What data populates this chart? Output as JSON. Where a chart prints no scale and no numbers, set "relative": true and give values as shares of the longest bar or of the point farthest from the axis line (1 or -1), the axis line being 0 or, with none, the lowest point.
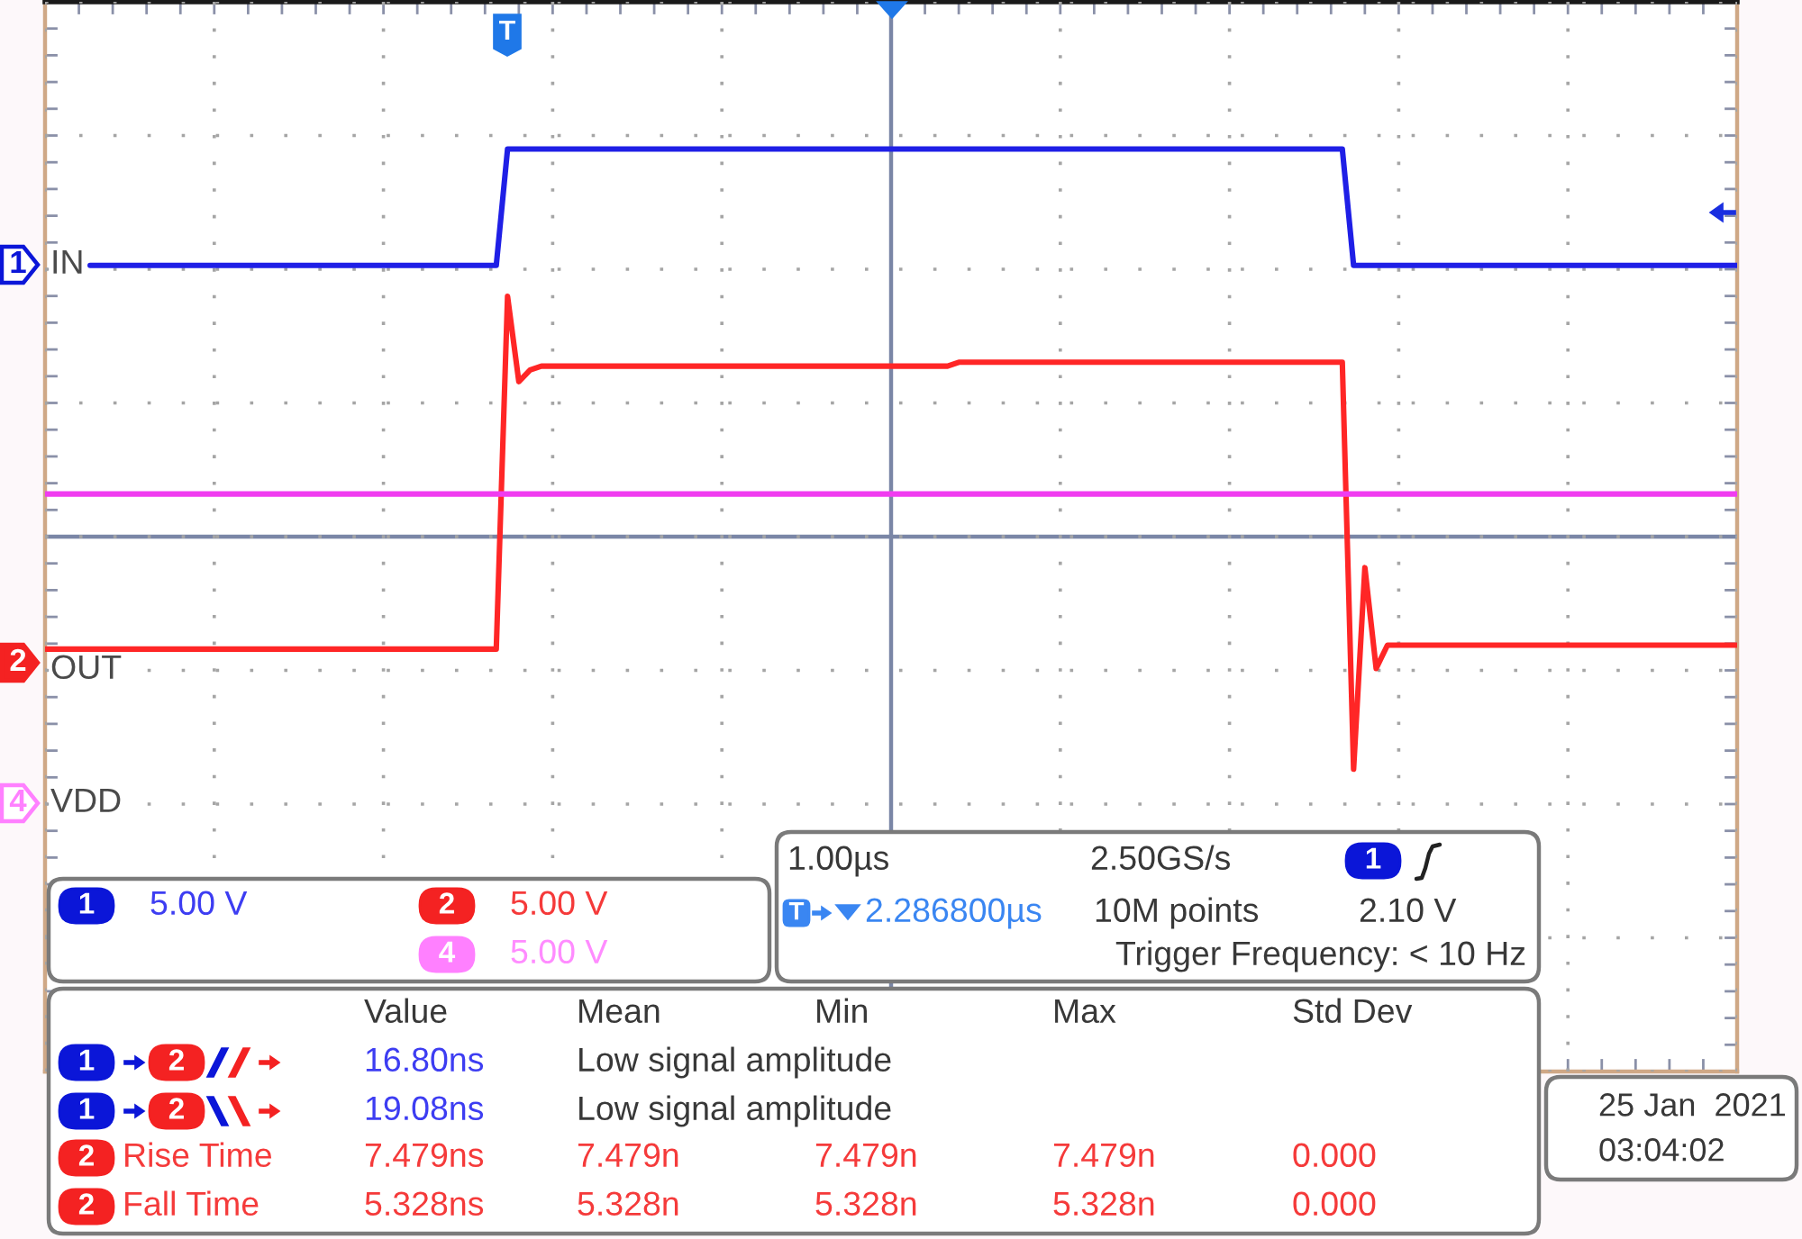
{
  "chart_data": {
    "type": "line",
    "relative": true,
    "tick_labels": false,
    "grid": true,
    "categories": [
      null,
      null,
      null,
      null,
      null,
      null,
      null,
      null,
      null,
      null,
      null,
      null,
      null,
      null,
      null,
      null,
      null,
      null,
      null,
      null,
      null,
      null,
      null,
      null,
      null,
      null,
      null,
      null,
      null,
      null,
      null,
      null,
      null,
      null,
      null,
      null,
      null,
      null,
      null,
      null,
      null,
      null,
      null,
      null,
      null,
      null,
      null,
      null,
      null,
      null,
      null,
      null,
      null,
      null,
      null,
      null,
      null,
      null,
      null,
      null,
      null,
      null,
      null,
      null,
      null,
      null,
      null,
      null,
      null,
      null,
      null,
      null,
      null,
      null,
      null,
      null,
      null,
      null,
      null,
      null,
      null,
      null,
      null,
      null,
      null,
      null,
      null,
      null,
      null,
      null,
      null,
      null,
      null,
      null,
      null,
      null,
      null,
      null,
      null,
      null,
      null,
      null,
      null,
      null,
      null,
      null,
      null,
      null,
      null,
      null,
      null,
      null,
      null,
      null,
      null,
      null,
      null,
      null,
      null,
      null,
      null,
      null,
      null,
      null,
      null,
      null,
      null,
      null,
      null,
      null,
      null,
      null,
      null,
      null,
      null,
      null,
      null,
      null,
      null,
      null,
      null,
      null,
      null,
      null,
      null,
      null,
      null,
      null,
      null,
      null,
      null
    ],
    "series": [
      {
        "name": "IN",
        "color": "#1f1fe6",
        "values": [
          null,
          null,
          null,
          null,
          0.7,
          0.7,
          0.7,
          0.7,
          0.7,
          0.7,
          0.7,
          0.7,
          0.7,
          0.7,
          0.7,
          0.7,
          0.7,
          0.7,
          0.7,
          0.7,
          0.7,
          0.7,
          0.7,
          0.7,
          0.7,
          0.7,
          0.7,
          0.7,
          0.7,
          0.7,
          0.7,
          0.7,
          0.7,
          0.7,
          0.7,
          0.7,
          0.7,
          0.7,
          0.7,
          0.7,
          0.7,
          1,
          1,
          1,
          1,
          1,
          1,
          1,
          1,
          1,
          1,
          1,
          1,
          1,
          1,
          1,
          1,
          1,
          1,
          1,
          1,
          1,
          1,
          1,
          1,
          1,
          1,
          1,
          1,
          1,
          1,
          1,
          1,
          1,
          1,
          1,
          1,
          1,
          1,
          1,
          1,
          1,
          1,
          1,
          1,
          1,
          1,
          1,
          1,
          1,
          1,
          1,
          1,
          1,
          1,
          1,
          1,
          1,
          1,
          1,
          1,
          1,
          1,
          1,
          1,
          1,
          1,
          1,
          1,
          1,
          1,
          1,
          1,
          1,
          1,
          1,
          0.7,
          0.7,
          0.7,
          0.7,
          0.7,
          0.7,
          0.7,
          0.7,
          0.7,
          0.7,
          0.7,
          0.7,
          0.7,
          0.7,
          0.7,
          0.7,
          0.7,
          0.7,
          0.7,
          0.7,
          0.7,
          0.7,
          0.7,
          0.7,
          0.7,
          0.7,
          0.7,
          0.7,
          0.7,
          0.7,
          0.7,
          0.7,
          0.7,
          0.7,
          0.7
        ]
      },
      {
        "name": "OUT",
        "color": "#ff2626",
        "values": [
          -0.29,
          -0.29,
          -0.29,
          -0.29,
          -0.29,
          -0.29,
          -0.29,
          -0.29,
          -0.29,
          -0.29,
          -0.29,
          -0.29,
          -0.29,
          -0.29,
          -0.29,
          -0.29,
          -0.29,
          -0.29,
          -0.29,
          -0.29,
          -0.29,
          -0.29,
          -0.29,
          -0.29,
          -0.29,
          -0.29,
          -0.29,
          -0.29,
          -0.29,
          -0.29,
          -0.29,
          -0.29,
          -0.29,
          -0.29,
          -0.29,
          -0.29,
          -0.29,
          -0.29,
          -0.29,
          -0.29,
          -0.29,
          0.62,
          0.4,
          0.43,
          0.44,
          0.44,
          0.44,
          0.44,
          0.44,
          0.44,
          0.44,
          0.44,
          0.44,
          0.44,
          0.44,
          0.44,
          0.44,
          0.44,
          0.44,
          0.44,
          0.44,
          0.44,
          0.44,
          0.44,
          0.44,
          0.44,
          0.44,
          0.44,
          0.44,
          0.44,
          0.44,
          0.44,
          0.44,
          0.44,
          0.44,
          0.44,
          0.44,
          0.44,
          0.44,
          0.44,
          0.44,
          0.45,
          0.45,
          0.45,
          0.45,
          0.45,
          0.45,
          0.45,
          0.45,
          0.45,
          0.45,
          0.45,
          0.45,
          0.45,
          0.45,
          0.45,
          0.45,
          0.45,
          0.45,
          0.45,
          0.45,
          0.45,
          0.45,
          0.45,
          0.45,
          0.45,
          0.45,
          0.45,
          0.45,
          0.45,
          0.45,
          0.45,
          0.45,
          0.45,
          0.45,
          0.45,
          -0.6,
          -0.08,
          -0.34,
          -0.28,
          -0.28,
          -0.28,
          -0.28,
          -0.28,
          -0.28,
          -0.28,
          -0.28,
          -0.28,
          -0.28,
          -0.28,
          -0.28,
          -0.28,
          -0.28,
          -0.28,
          -0.28,
          -0.28,
          -0.28,
          -0.28,
          -0.28,
          -0.28,
          -0.28,
          -0.28,
          -0.28,
          -0.28,
          -0.28,
          -0.28,
          -0.28,
          -0.28,
          -0.28,
          -0.28,
          -0.28
        ]
      },
      {
        "color": "#f03cf0",
        "values": [
          0.11,
          0.11,
          0.11,
          0.11,
          0.11,
          0.11,
          0.11,
          0.11,
          0.11,
          0.11,
          0.11,
          0.11,
          0.11,
          0.11,
          0.11,
          0.11,
          0.11,
          0.11,
          0.11,
          0.11,
          0.11,
          0.11,
          0.11,
          0.11,
          0.11,
          0.11,
          0.11,
          0.11,
          0.11,
          0.11,
          0.11,
          0.11,
          0.11,
          0.11,
          0.11,
          0.11,
          0.11,
          0.11,
          0.11,
          0.11,
          0.11,
          0.11,
          0.11,
          0.11,
          0.11,
          0.11,
          0.11,
          0.11,
          0.11,
          0.11,
          0.11,
          0.11,
          0.11,
          0.11,
          0.11,
          0.11,
          0.11,
          0.11,
          0.11,
          0.11,
          0.11,
          0.11,
          0.11,
          0.11,
          0.11,
          0.11,
          0.11,
          0.11,
          0.11,
          0.11,
          0.11,
          0.11,
          0.11,
          0.11,
          0.11,
          0.11,
          0.11,
          0.11,
          0.11,
          0.11,
          0.11,
          0.11,
          0.11,
          0.11,
          0.11,
          0.11,
          0.11,
          0.11,
          0.11,
          0.11,
          0.11,
          0.11,
          0.11,
          0.11,
          0.11,
          0.11,
          0.11,
          0.11,
          0.11,
          0.11,
          0.11,
          0.11,
          0.11,
          0.11,
          0.11,
          0.11,
          0.11,
          0.11,
          0.11,
          0.11,
          0.11,
          0.11,
          0.11,
          0.11,
          0.11,
          0.11,
          0.11,
          0.11,
          0.11,
          0.11,
          0.11,
          0.11,
          0.11,
          0.11,
          0.11,
          0.11,
          0.11,
          0.11,
          0.11,
          0.11,
          0.11,
          0.11,
          0.11,
          0.11,
          0.11,
          0.11,
          0.11,
          0.11,
          0.11,
          0.11,
          0.11,
          0.11,
          0.11,
          0.11,
          0.11,
          0.11,
          0.11,
          0.11,
          0.11,
          0.11,
          0.11
        ]
      }
    ],
    "ref_lines": [
      {
        "axis": "y",
        "value": 0,
        "color": "#7a86a6"
      }
    ],
    "annotations": [
      "1",
      "2",
      "4",
      "VDD",
      "T",
      "1",
      "5.00 V",
      "2",
      "5.00 V",
      "4",
      "5.00 V",
      "1.00µs",
      "2.50GS/s",
      "1",
      "T",
      "2.286800µs",
      "10M points",
      "2.10 V",
      "Trigger Frequency: < 10 Hz",
      "Value",
      "Mean",
      "Min",
      "Max",
      "Std Dev",
      "1",
      "2",
      "16.80ns",
      "Low signal amplitude",
      "1",
      "2",
      "19.08ns",
      "Low signal amplitude",
      "2",
      "Rise Time",
      "7.479ns",
      "7.479n",
      "7.479n",
      "7.479n",
      "0.000",
      "2",
      "Fall Time",
      "5.328ns",
      "5.328n",
      "5.328n",
      "5.328n",
      "0.000",
      "25 Jan  2021",
      "03:04:02"
    ]
  }
}
